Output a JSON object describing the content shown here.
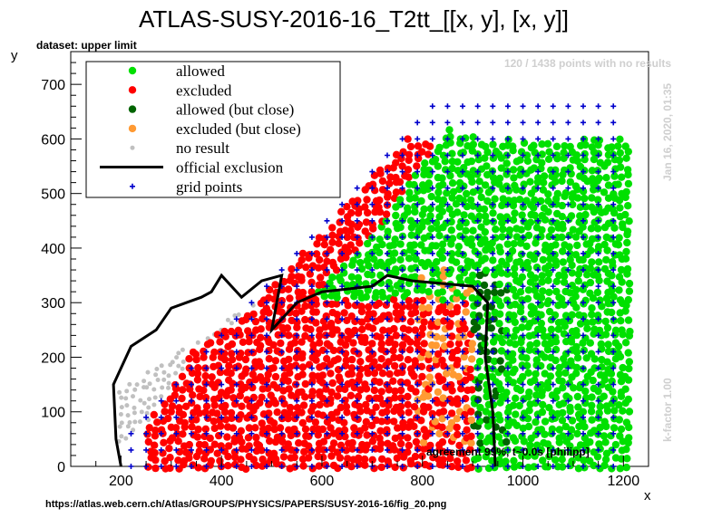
{
  "chart_data": {
    "type": "scatter",
    "title": "ATLAS-SUSY-2016-16_T2tt_[[x, y], [x, y]]",
    "subtitle": "dataset: upper limit",
    "xlabel": "x",
    "ylabel": "y",
    "xlim": [
      100,
      1250
    ],
    "ylim": [
      0,
      760
    ],
    "x_ticks": [
      200,
      400,
      600,
      800,
      1000,
      1200
    ],
    "y_ticks": [
      0,
      100,
      200,
      300,
      400,
      500,
      600,
      700
    ],
    "grid": false,
    "legend_position": "top-left",
    "legend": [
      {
        "label": "allowed",
        "color": "#00e000",
        "marker": "dot"
      },
      {
        "label": "excluded",
        "color": "#ff0000",
        "marker": "dot"
      },
      {
        "label": "allowed (but close)",
        "color": "#006400",
        "marker": "dot"
      },
      {
        "label": "excluded (but close)",
        "color": "#ff9a33",
        "marker": "dot"
      },
      {
        "label": "no result",
        "color": "#c0c0c0",
        "marker": "small-dot"
      },
      {
        "label": "official exclusion",
        "color": "#000000",
        "marker": "line"
      },
      {
        "label": "grid points",
        "color": "#0000cc",
        "marker": "plus"
      }
    ],
    "annotations": {
      "no_results": "120 / 1438 points with no results",
      "date": "Jan 16, 2020, 01:35",
      "kfactor": "k-factor 1.00",
      "agreement": "agreement 99%, t~0.0s [philipp]",
      "source_url": "https://atlas.web.cern.ch/Atlas/GROUPS/PHYSICS/PAPERS/SUSY-2016-16/fig_20.png"
    },
    "regions": {
      "allowed": [
        [
          580,
          310
        ],
        [
          700,
          420
        ],
        [
          850,
          620
        ],
        [
          1000,
          580
        ],
        [
          1180,
          560
        ],
        [
          1190,
          100
        ],
        [
          1000,
          20
        ],
        [
          980,
          300
        ]
      ],
      "excluded": [
        [
          250,
          70
        ],
        [
          350,
          220
        ],
        [
          560,
          340
        ],
        [
          700,
          330
        ],
        [
          880,
          320
        ],
        [
          900,
          100
        ],
        [
          700,
          10
        ],
        [
          300,
          10
        ]
      ],
      "allowed_close": [
        [
          620,
          340
        ],
        [
          760,
          370
        ],
        [
          840,
          360
        ],
        [
          900,
          330
        ],
        [
          930,
          250
        ],
        [
          960,
          180
        ]
      ],
      "excluded_close": [
        [
          560,
          310
        ],
        [
          650,
          320
        ],
        [
          820,
          310
        ],
        [
          900,
          280
        ],
        [
          920,
          200
        ],
        [
          930,
          80
        ]
      ]
    },
    "official_exclusion": [
      [
        200,
        0
      ],
      [
        190,
        50
      ],
      [
        185,
        150
      ],
      [
        220,
        220
      ],
      [
        270,
        250
      ],
      [
        300,
        290
      ],
      [
        330,
        300
      ],
      [
        360,
        310
      ],
      [
        380,
        320
      ],
      [
        400,
        350
      ],
      [
        440,
        310
      ],
      [
        480,
        340
      ],
      [
        520,
        350
      ],
      [
        500,
        250
      ],
      [
        550,
        300
      ],
      [
        600,
        320
      ],
      [
        700,
        330
      ],
      [
        730,
        350
      ],
      [
        780,
        340
      ],
      [
        900,
        330
      ],
      [
        930,
        300
      ],
      [
        925,
        200
      ],
      [
        940,
        100
      ],
      [
        945,
        0
      ]
    ]
  }
}
